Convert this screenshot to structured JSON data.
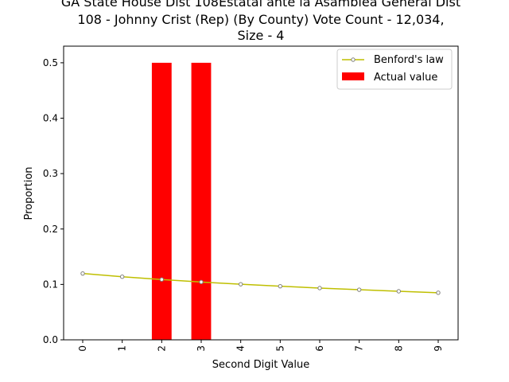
{
  "chart_data": {
    "type": "bar",
    "title_lines": [
      "GA State House Dist 108Estatal ante la Asamblea General Dist",
      "108 - Johnny Crist (Rep) (By County) Vote Count - 12,034,",
      "Size - 4"
    ],
    "xlabel": "Second Digit Value",
    "ylabel": "Proportion",
    "categories": [
      "0",
      "1",
      "2",
      "3",
      "4",
      "5",
      "6",
      "7",
      "8",
      "9"
    ],
    "ylim": [
      0,
      0.53
    ],
    "yticks": [
      "0.0",
      "0.1",
      "0.2",
      "0.3",
      "0.4",
      "0.5"
    ],
    "legend_position": "top-right",
    "series": [
      {
        "name": "Benford's law",
        "kind": "line",
        "color": "#bfbf00",
        "marker_edge_color": "#7f7f7f",
        "values": [
          0.1197,
          0.1139,
          0.1088,
          0.1043,
          0.1003,
          0.0967,
          0.0934,
          0.0904,
          0.0876,
          0.085
        ]
      },
      {
        "name": "Actual value",
        "kind": "bar",
        "color": "#ff0000",
        "values": [
          0,
          0,
          0.5,
          0.5,
          0,
          0,
          0,
          0,
          0,
          0
        ]
      }
    ]
  }
}
